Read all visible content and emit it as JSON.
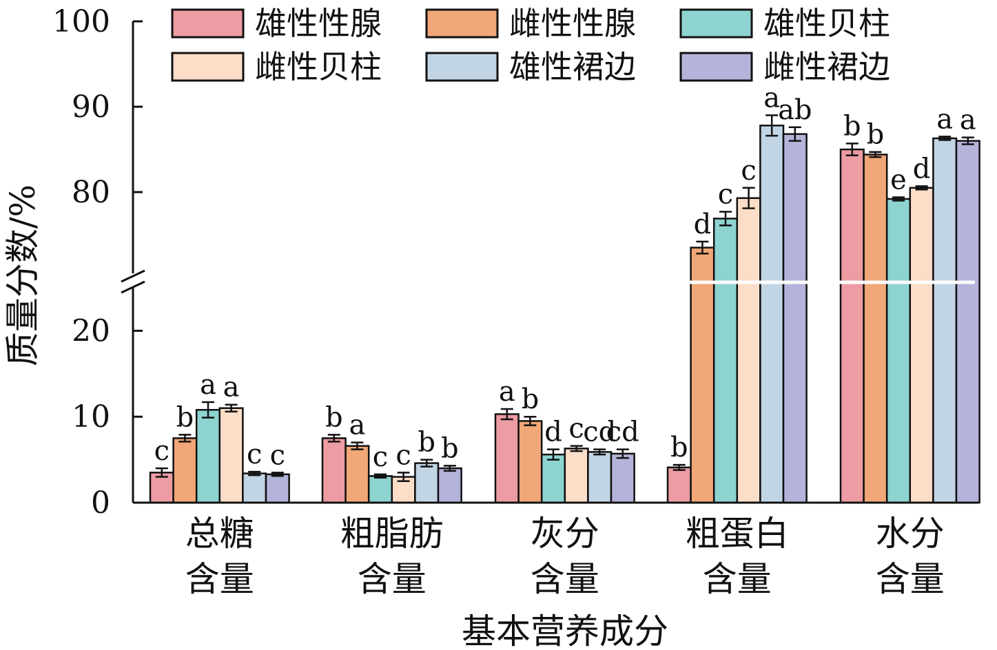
{
  "chart_data": {
    "type": "bar",
    "xlabel": "基本营养成分",
    "ylabel": "质量分数/%",
    "categories": [
      [
        "总糖",
        "含量"
      ],
      [
        "粗脂肪",
        "含量"
      ],
      [
        "灰分",
        "含量"
      ],
      [
        "粗蛋白",
        "含量"
      ],
      [
        "水分",
        "含量"
      ]
    ],
    "axis_break": {
      "lower": [
        0,
        25
      ],
      "upper": [
        70,
        100
      ]
    },
    "ticks": {
      "lower": [
        0,
        10,
        20
      ],
      "upper": [
        80,
        90,
        100
      ],
      "lower_labels": [
        "0",
        "10",
        "20"
      ],
      "upper_labels": [
        "80",
        "90",
        "100"
      ]
    },
    "legend_position": "top",
    "series": [
      {
        "name": "雄性性腺",
        "color": "#EC9CA2",
        "values": [
          3.5,
          7.5,
          10.3,
          4.1,
          85.0
        ],
        "errors": [
          0.5,
          0.4,
          0.6,
          0.3,
          0.7
        ],
        "labels": [
          "c",
          "b",
          "a",
          "b",
          "b"
        ]
      },
      {
        "name": "雌性性腺",
        "color": "#F1A777",
        "values": [
          7.5,
          6.6,
          9.5,
          73.5,
          84.4
        ],
        "errors": [
          0.4,
          0.4,
          0.5,
          0.7,
          0.3
        ],
        "labels": [
          "b",
          "a",
          "b",
          "d",
          "b"
        ]
      },
      {
        "name": "雄性贝柱",
        "color": "#8DD3D0",
        "values": [
          10.8,
          3.1,
          5.6,
          76.9,
          79.2
        ],
        "errors": [
          0.9,
          0.2,
          0.6,
          0.8,
          0.2
        ],
        "labels": [
          "a",
          "c",
          "d",
          "c",
          "e"
        ]
      },
      {
        "name": "雌性贝柱",
        "color": "#FBDDC8",
        "values": [
          11.0,
          3.0,
          6.3,
          79.3,
          80.5
        ],
        "errors": [
          0.4,
          0.5,
          0.3,
          1.2,
          0.2
        ],
        "labels": [
          "a",
          "c",
          "c",
          "c",
          "d"
        ]
      },
      {
        "name": "雄性裙边",
        "color": "#C2D5E5",
        "values": [
          3.4,
          4.6,
          5.9,
          87.8,
          86.3
        ],
        "errors": [
          0.2,
          0.4,
          0.3,
          1.2,
          0.2
        ],
        "labels": [
          "c",
          "b",
          "cd",
          "a",
          "a"
        ]
      },
      {
        "name": "雌性裙边",
        "color": "#B4B3DA",
        "values": [
          3.3,
          4.0,
          5.7,
          86.8,
          86.0
        ],
        "errors": [
          0.2,
          0.3,
          0.5,
          0.8,
          0.4
        ],
        "labels": [
          "c",
          "b",
          "cd",
          "ab",
          "a"
        ]
      }
    ]
  }
}
